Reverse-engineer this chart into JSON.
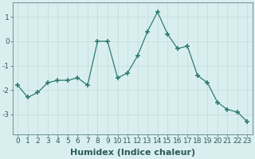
{
  "x": [
    0,
    1,
    2,
    3,
    4,
    5,
    6,
    7,
    8,
    9,
    10,
    11,
    12,
    13,
    14,
    15,
    16,
    17,
    18,
    19,
    20,
    21,
    22,
    23
  ],
  "y": [
    -1.8,
    -2.3,
    -2.1,
    -1.7,
    -1.6,
    -1.6,
    -1.5,
    -1.8,
    0.0,
    0.0,
    -1.5,
    -1.3,
    -0.6,
    0.4,
    1.2,
    0.3,
    -0.3,
    -0.2,
    -1.4,
    -1.7,
    -2.5,
    -2.8,
    -2.9,
    -3.3
  ],
  "line_color": "#2d7d6e",
  "marker": "+",
  "marker_size": 5,
  "bg_color": "#d9efef",
  "grid_color": "#c8dede",
  "grid_color_h": "#c8c8c8",
  "xlabel": "Humidex (Indice chaleur)",
  "xlabel_fontsize": 8,
  "ylabel_ticks": [
    -3,
    -2,
    -1,
    0,
    1
  ],
  "xtick_labels": [
    "0",
    "1",
    "2",
    "3",
    "4",
    "5",
    "6",
    "7",
    "8",
    "9",
    "10",
    "11",
    "12",
    "13",
    "14",
    "15",
    "16",
    "17",
    "18",
    "19",
    "20",
    "21",
    "22",
    "23"
  ],
  "ylim": [
    -3.8,
    1.6
  ],
  "xlim": [
    -0.5,
    23.5
  ],
  "tick_fontsize": 6.5,
  "spine_color": "#7a9a9a"
}
